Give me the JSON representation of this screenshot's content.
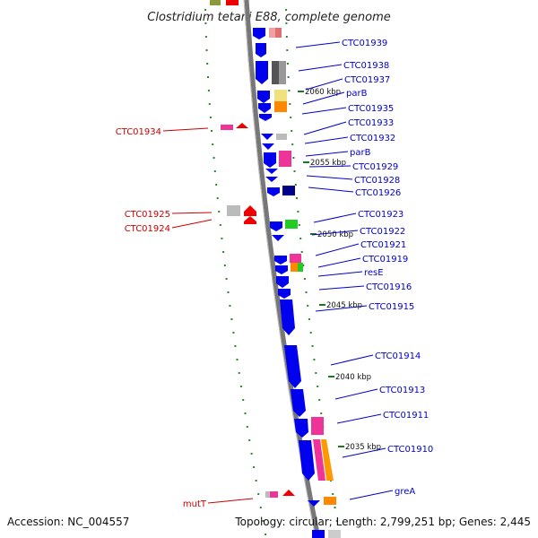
{
  "map": {
    "title": "Clostridium tetani E88, complete genome",
    "accession": "Accession: NC_004557",
    "summary": "Topology: circular; Length: 2,799,251 bp; Genes: 2,445"
  },
  "ruler": [
    {
      "label": "2060 kbp"
    },
    {
      "label": "2055 kbp"
    },
    {
      "label": "2050 kbp"
    },
    {
      "label": "2045 kbp"
    },
    {
      "label": "2040 kbp"
    },
    {
      "label": "2035 kbp"
    }
  ],
  "plus_labels": [
    "CTC01939",
    "CTC01938",
    "CTC01937",
    "parB",
    "CTC01935",
    "CTC01933",
    "CTC01932",
    "parB",
    "CTC01929",
    "CTC01928",
    "CTC01926",
    "CTC01923",
    "CTC01922",
    "CTC01921",
    "CTC01919",
    "resE",
    "CTC01916",
    "CTC01915",
    "CTC01914",
    "CTC01913",
    "CTC01911",
    "CTC01910",
    "greA"
  ],
  "minus_labels": [
    "CTC01934",
    "CTC01925",
    "CTC01924",
    "mutT"
  ],
  "colors": {
    "label_plus": "#0000cc",
    "label_minus": "#cc0000",
    "gene_blue": "#0000ee",
    "backbone": "#777777",
    "dots": "#2a8a2a"
  }
}
